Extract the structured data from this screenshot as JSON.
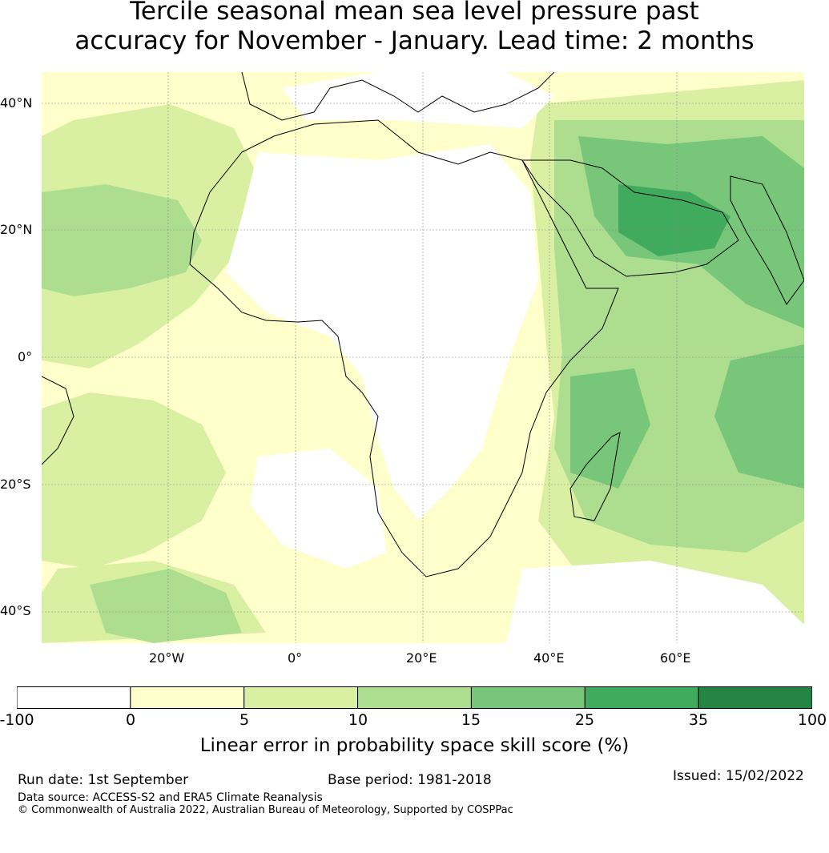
{
  "title_line1": "Tercile seasonal mean sea level pressure past",
  "title_line2": "accuracy for November - January. Lead time: 2 months",
  "map": {
    "lon_labels": [
      "20°W",
      "0°",
      "20°E",
      "40°E",
      "60°E"
    ],
    "lat_labels": [
      "40°N",
      "20°N",
      "0°",
      "20°S",
      "40°S"
    ],
    "extent": {
      "lon": [
        -40,
        80
      ],
      "lat": [
        -45,
        45
      ]
    },
    "gridlines": true
  },
  "colorbar": {
    "labels": [
      "-100",
      "0",
      "5",
      "10",
      "15",
      "25",
      "35",
      "100"
    ],
    "colors": [
      "#ffffff",
      "#ffffcc",
      "#d9f0a3",
      "#addd8e",
      "#78c679",
      "#41ab5d",
      "#238443"
    ],
    "title": "Linear error in probability space skill score (%)"
  },
  "footer": {
    "run_date": "Run date: 1st September",
    "base_period": "Base period: 1981-2018",
    "issued": "Issued: 15/02/2022",
    "data_source": "Data source: ACCESS-S2 and ERA5 Climate Reanalysis",
    "copyright": "© Commonwealth of Australia 2022, Australian Bureau of Meteorology, Supported by COSPPac"
  }
}
